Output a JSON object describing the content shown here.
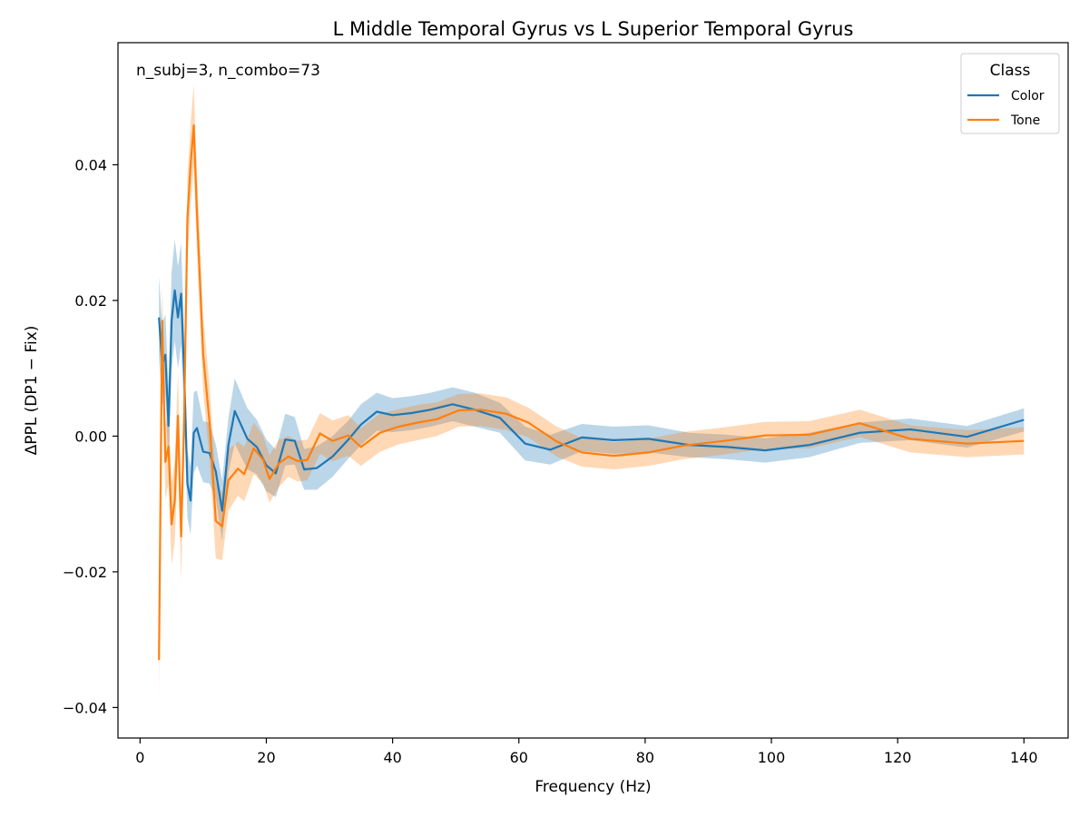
{
  "chart_data": {
    "type": "line",
    "title": "L Middle Temporal Gyrus vs L Superior Temporal Gyrus",
    "xlabel": "Frequency (Hz)",
    "ylabel": "ΔPPL (DP1 − Fix)",
    "annotation": "n_subj=3, n_combo=73",
    "xlim": [
      -3.5,
      147
    ],
    "ylim": [
      -0.0445,
      0.058
    ],
    "xticks": [
      0,
      20,
      40,
      60,
      80,
      100,
      120,
      140
    ],
    "xtick_labels": [
      "0",
      "20",
      "40",
      "60",
      "80",
      "100",
      "120",
      "140"
    ],
    "yticks": [
      -0.04,
      -0.02,
      0.0,
      0.02,
      0.04
    ],
    "ytick_labels": [
      "−0.04",
      "−0.02",
      "0.00",
      "0.02",
      "0.04"
    ],
    "grid": false,
    "legend": {
      "title": "Class",
      "placement": "top-right"
    },
    "series": [
      {
        "name": "Color",
        "color": "#1f77b4",
        "band_color": "#1f77b4",
        "points": [
          [
            3.0,
            0.0175
          ],
          [
            3.5,
            0.0105
          ],
          [
            4.0,
            0.012
          ],
          [
            4.5,
            0.0015
          ],
          [
            5.0,
            0.017
          ],
          [
            5.5,
            0.0215
          ],
          [
            6.0,
            0.0175
          ],
          [
            6.5,
            0.021
          ],
          [
            7.0,
            0.009
          ],
          [
            7.5,
            -0.007
          ],
          [
            8.0,
            -0.0095
          ],
          [
            8.5,
            0.0005
          ],
          [
            9.0,
            0.0012
          ],
          [
            10.0,
            -0.0023
          ],
          [
            11.0,
            -0.0025
          ],
          [
            12.0,
            -0.0052
          ],
          [
            13.0,
            -0.011
          ],
          [
            14.0,
            -0.0013
          ],
          [
            15.0,
            0.0037
          ],
          [
            17.0,
            -0.0004
          ],
          [
            18.5,
            -0.0016
          ],
          [
            20.0,
            -0.0043
          ],
          [
            21.5,
            -0.0055
          ],
          [
            23.0,
            -0.0005
          ],
          [
            24.5,
            -0.0007
          ],
          [
            26.0,
            -0.0049
          ],
          [
            28.0,
            -0.0047
          ],
          [
            30.5,
            -0.003
          ],
          [
            33.0,
            -0.0005
          ],
          [
            35.0,
            0.0017
          ],
          [
            37.5,
            0.0036
          ],
          [
            40.0,
            0.0031
          ],
          [
            43.0,
            0.0034
          ],
          [
            46.0,
            0.0039
          ],
          [
            49.5,
            0.0047
          ],
          [
            53.0,
            0.0039
          ],
          [
            57.0,
            0.0027
          ],
          [
            61.0,
            -0.0011
          ],
          [
            65.0,
            -0.002
          ],
          [
            70.0,
            -0.0002
          ],
          [
            75.0,
            -0.0006
          ],
          [
            80.5,
            -0.0004
          ],
          [
            87.0,
            -0.0013
          ],
          [
            93.0,
            -0.0016
          ],
          [
            99.0,
            -0.0021
          ],
          [
            106.0,
            -0.0013
          ],
          [
            114.0,
            0.0005
          ],
          [
            122.0,
            0.001
          ],
          [
            131.0,
            -0.0001
          ],
          [
            140.0,
            0.0024
          ]
        ],
        "spread": [
          0.006,
          0.006,
          0.006,
          0.006,
          0.0072,
          0.0075,
          0.0075,
          0.0075,
          0.006,
          0.005,
          0.005,
          0.006,
          0.0055,
          0.0045,
          0.0045,
          0.004,
          0.0045,
          0.004,
          0.0048,
          0.0045,
          0.004,
          0.0038,
          0.0035,
          0.0038,
          0.0035,
          0.003,
          0.0032,
          0.003,
          0.0028,
          0.003,
          0.0028,
          0.0025,
          0.0025,
          0.0025,
          0.0025,
          0.0025,
          0.0022,
          0.0025,
          0.0022,
          0.002,
          0.002,
          0.002,
          0.0018,
          0.0018,
          0.0018,
          0.0018,
          0.0015,
          0.0016,
          0.0016,
          0.0017
        ]
      },
      {
        "name": "Tone",
        "color": "#ff7f0e",
        "band_color": "#ff7f0e",
        "points": [
          [
            3.0,
            -0.033
          ],
          [
            3.5,
            0.017
          ],
          [
            4.0,
            -0.0038
          ],
          [
            4.5,
            -0.0015
          ],
          [
            5.0,
            -0.013
          ],
          [
            5.5,
            -0.0095
          ],
          [
            6.0,
            0.003
          ],
          [
            6.5,
            -0.0148
          ],
          [
            7.0,
            0.003
          ],
          [
            7.5,
            0.032
          ],
          [
            8.0,
            0.04
          ],
          [
            8.5,
            0.0458
          ],
          [
            9.0,
            0.033
          ],
          [
            10.0,
            0.012
          ],
          [
            11.0,
            0.002
          ],
          [
            12.0,
            -0.0125
          ],
          [
            13.0,
            -0.0133
          ],
          [
            14.0,
            -0.0065
          ],
          [
            15.5,
            -0.0048
          ],
          [
            16.5,
            -0.0056
          ],
          [
            18.0,
            -0.0018
          ],
          [
            19.5,
            -0.0035
          ],
          [
            20.5,
            -0.0063
          ],
          [
            22.0,
            -0.004
          ],
          [
            23.5,
            -0.003
          ],
          [
            25.0,
            -0.0037
          ],
          [
            26.5,
            -0.0035
          ],
          [
            28.5,
            0.0004
          ],
          [
            30.5,
            -0.0007
          ],
          [
            33.0,
            0.0001
          ],
          [
            35.0,
            -0.0016
          ],
          [
            38.0,
            0.0005
          ],
          [
            41.0,
            0.0014
          ],
          [
            44.0,
            0.002
          ],
          [
            47.0,
            0.0025
          ],
          [
            50.5,
            0.0038
          ],
          [
            54.0,
            0.0039
          ],
          [
            58.0,
            0.0033
          ],
          [
            61.5,
            0.002
          ],
          [
            66.0,
            -0.0008
          ],
          [
            70.0,
            -0.0024
          ],
          [
            75.0,
            -0.0029
          ],
          [
            80.5,
            -0.0024
          ],
          [
            86.0,
            -0.0014
          ],
          [
            92.5,
            -0.0007
          ],
          [
            99.0,
            0.0001
          ],
          [
            106.0,
            0.0002
          ],
          [
            114.0,
            0.0019
          ],
          [
            122.0,
            -0.0004
          ],
          [
            131.0,
            -0.0011
          ],
          [
            140.0,
            -0.0007
          ]
        ],
        "spread": [
          0.0055,
          0.0055,
          0.0055,
          0.0055,
          0.006,
          0.006,
          0.0065,
          0.0065,
          0.006,
          0.006,
          0.006,
          0.006,
          0.006,
          0.0055,
          0.0055,
          0.0055,
          0.005,
          0.0045,
          0.004,
          0.004,
          0.0038,
          0.0035,
          0.0035,
          0.0035,
          0.003,
          0.003,
          0.003,
          0.003,
          0.003,
          0.003,
          0.0028,
          0.0028,
          0.0026,
          0.0026,
          0.0025,
          0.0024,
          0.0024,
          0.0024,
          0.0022,
          0.0022,
          0.0021,
          0.002,
          0.002,
          0.002,
          0.002,
          0.002,
          0.002,
          0.002,
          0.002,
          0.002,
          0.002
        ]
      }
    ]
  }
}
